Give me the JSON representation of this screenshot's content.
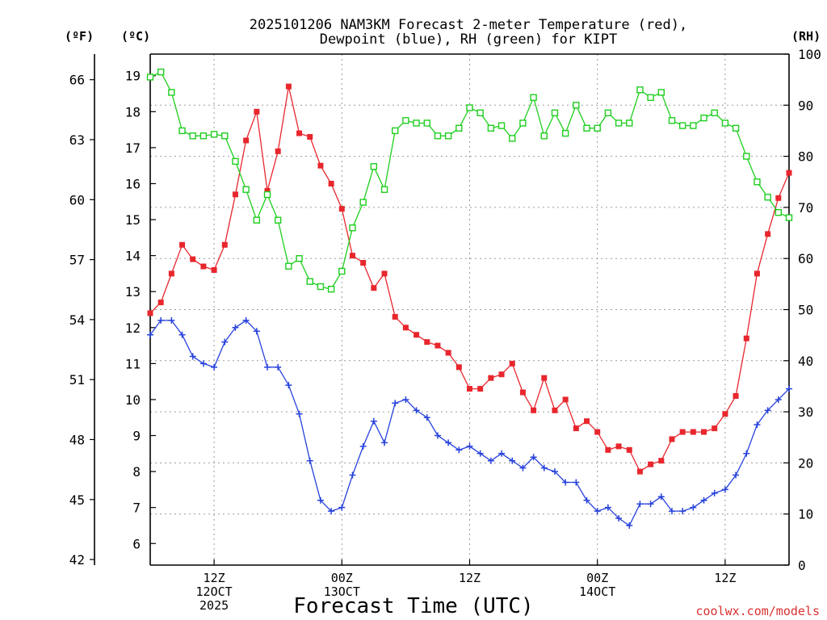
{
  "chart_data": {
    "type": "line",
    "title": "2025101206 NAM3KM Forecast 2-meter Temperature (red),",
    "subtitle": "Dewpoint (blue), RH (green) for KIPT",
    "xlabel": "Forecast Time (UTC)",
    "credit": "coolwx.com/models",
    "units": {
      "fahrenheit": "(ºF)",
      "celsius": "(ºC)",
      "rh": "(RH)"
    },
    "x_range_hours": [
      6,
      66
    ],
    "celsius_range": [
      5.4,
      19.6
    ],
    "rh_range": [
      0,
      100
    ],
    "fahrenheit_ticks": [
      42,
      45,
      48,
      51,
      54,
      57,
      60,
      63,
      66
    ],
    "celsius_ticks": [
      6,
      7,
      8,
      9,
      10,
      11,
      12,
      13,
      14,
      15,
      16,
      17,
      18,
      19
    ],
    "rh_ticks": [
      0,
      10,
      20,
      30,
      40,
      50,
      60,
      70,
      80,
      90,
      100
    ],
    "x_ticks": [
      {
        "hour": 12,
        "lines": [
          "12Z",
          "12OCT",
          "2025"
        ]
      },
      {
        "hour": 24,
        "lines": [
          "00Z",
          "13OCT"
        ]
      },
      {
        "hour": 36,
        "lines": [
          "12Z"
        ]
      },
      {
        "hour": 48,
        "lines": [
          "00Z",
          "14OCT"
        ]
      },
      {
        "hour": 60,
        "lines": [
          "12Z"
        ]
      }
    ],
    "series": [
      {
        "name": "2-meter Temperature",
        "unit": "C",
        "color": "#e8262d",
        "marker": "filled-square",
        "start_hour": 6,
        "step_hours": 1,
        "values": [
          12.4,
          12.7,
          13.5,
          14.3,
          13.9,
          13.7,
          13.6,
          14.3,
          15.7,
          17.2,
          18.0,
          15.8,
          16.9,
          18.7,
          17.4,
          17.3,
          16.5,
          16.0,
          15.3,
          14.0,
          13.8,
          13.1,
          13.5,
          12.3,
          12.0,
          11.8,
          11.6,
          11.5,
          11.3,
          10.9,
          10.3,
          10.3,
          10.6,
          10.7,
          11.0,
          10.2,
          9.7,
          10.6,
          9.7,
          10.0,
          9.2,
          9.4,
          9.1,
          8.6,
          8.7,
          8.6,
          8.0,
          8.2,
          8.3,
          8.9,
          9.1,
          9.1,
          9.1,
          9.2,
          9.6,
          10.1,
          11.7,
          13.5,
          14.6,
          15.6,
          16.3
        ]
      },
      {
        "name": "Dewpoint",
        "unit": "C",
        "color": "#2742dc",
        "marker": "plus",
        "start_hour": 6,
        "step_hours": 1,
        "values": [
          11.8,
          12.2,
          12.2,
          11.8,
          11.2,
          11.0,
          10.9,
          11.6,
          12.0,
          12.2,
          11.9,
          10.9,
          10.9,
          10.4,
          9.6,
          8.3,
          7.2,
          6.9,
          7.0,
          7.9,
          8.7,
          9.4,
          8.8,
          9.9,
          10.0,
          9.7,
          9.5,
          9.0,
          8.8,
          8.6,
          8.7,
          8.5,
          8.3,
          8.5,
          8.3,
          8.1,
          8.4,
          8.1,
          8.0,
          7.7,
          7.7,
          7.2,
          6.9,
          7.0,
          6.7,
          6.5,
          7.1,
          7.1,
          7.3,
          6.9,
          6.9,
          7.0,
          7.2,
          7.4,
          7.5,
          7.9,
          8.5,
          9.3,
          9.7,
          10.0,
          10.3
        ]
      },
      {
        "name": "RH",
        "unit": "%",
        "color": "#1fce1f",
        "marker": "open-square",
        "start_hour": 6,
        "step_hours": 1,
        "values": [
          95.5,
          96.5,
          92.5,
          85.0,
          84.0,
          84.0,
          84.3,
          84.0,
          79.0,
          73.5,
          67.5,
          72.5,
          67.5,
          58.5,
          60.0,
          55.5,
          54.5,
          54.0,
          57.5,
          66.0,
          71.0,
          78.0,
          73.5,
          85.0,
          87.0,
          86.5,
          86.5,
          84.0,
          84.0,
          85.5,
          89.5,
          88.5,
          85.5,
          86.0,
          83.5,
          86.5,
          91.5,
          84.0,
          88.5,
          84.5,
          90.0,
          85.5,
          85.5,
          88.5,
          86.5,
          86.5,
          93.0,
          91.5,
          92.5,
          87.0,
          86.0,
          86.0,
          87.5,
          88.5,
          86.5,
          85.5,
          80.0,
          75.0,
          72.0,
          69.0,
          68.0
        ]
      }
    ]
  }
}
